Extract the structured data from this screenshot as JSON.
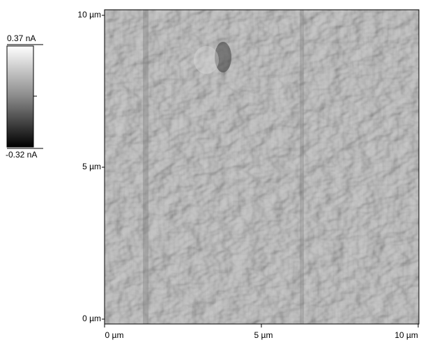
{
  "image": {
    "x_axis": {
      "labels": [
        "0 µm",
        "5 µm",
        "10 µm"
      ]
    },
    "y_axis": {
      "labels": [
        "10 µm",
        "5 µm",
        "0 µm"
      ]
    },
    "colorbar": {
      "max_label": "0.37 nA",
      "min_label": "-0.32 nA"
    }
  }
}
